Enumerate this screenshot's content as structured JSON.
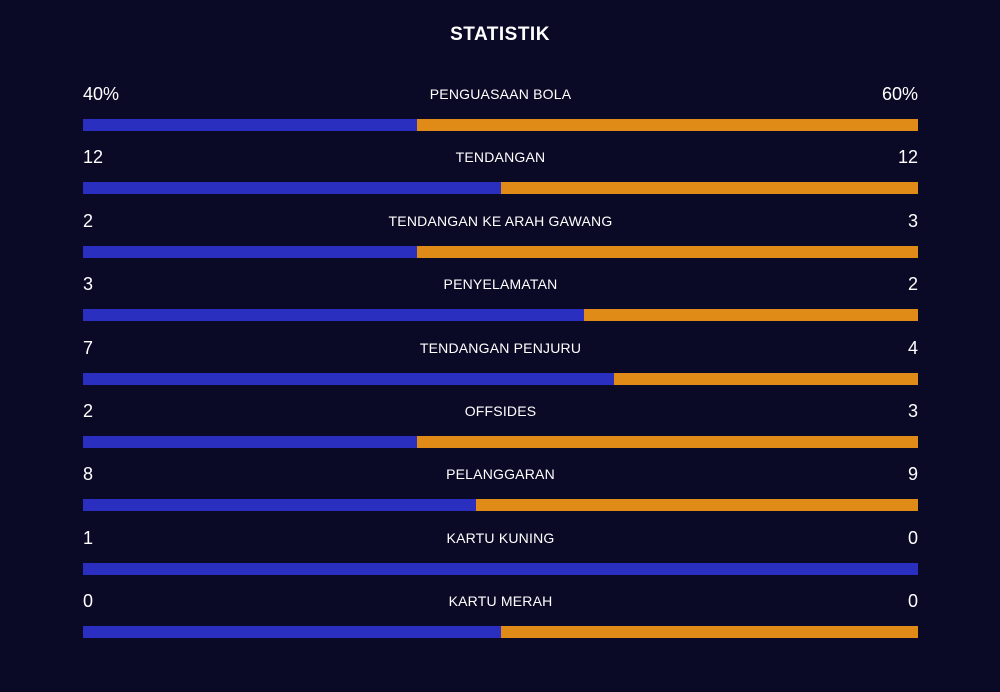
{
  "title": "STATISTIK",
  "colors": {
    "background": "#0a0a26",
    "home": "#2a2fc0",
    "away": "#e08a17"
  },
  "stats": [
    {
      "label": "PENGUASAAN BOLA",
      "home": "40%",
      "away": "60%",
      "home_share": 0.4
    },
    {
      "label": "TENDANGAN",
      "home": "12",
      "away": "12",
      "home_share": 0.5
    },
    {
      "label": "TENDANGAN KE ARAH GAWANG",
      "home": "2",
      "away": "3",
      "home_share": 0.4
    },
    {
      "label": "PENYELAMATAN",
      "home": "3",
      "away": "2",
      "home_share": 0.6
    },
    {
      "label": "TENDANGAN PENJURU",
      "home": "7",
      "away": "4",
      "home_share": 0.636
    },
    {
      "label": "OFFSIDES",
      "home": "2",
      "away": "3",
      "home_share": 0.4
    },
    {
      "label": "PELANGGARAN",
      "home": "8",
      "away": "9",
      "home_share": 0.471
    },
    {
      "label": "KARTU KUNING",
      "home": "1",
      "away": "0",
      "home_share": 1.0
    },
    {
      "label": "KARTU MERAH",
      "home": "0",
      "away": "0",
      "home_share": 0.5
    }
  ]
}
